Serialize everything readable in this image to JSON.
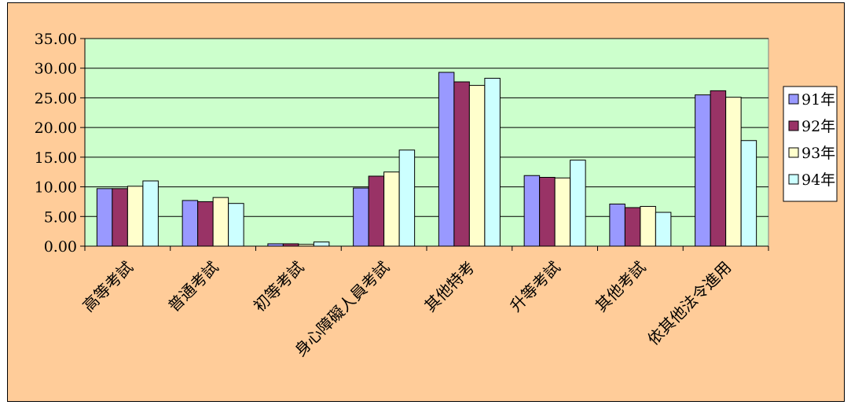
{
  "chart_data": {
    "type": "bar",
    "title": "",
    "xlabel": "",
    "ylabel": "",
    "categories": [
      "高等考試",
      "普通考試",
      "初等考試",
      "身心障礙人員考試",
      "其他特考",
      "升等考試",
      "其他考試",
      "依其他法令進用"
    ],
    "series": [
      {
        "name": "91年",
        "color": "#9999FF",
        "values": [
          9.7,
          7.7,
          0.4,
          9.8,
          29.3,
          11.9,
          7.1,
          25.5
        ]
      },
      {
        "name": "92年",
        "color": "#993366",
        "values": [
          9.7,
          7.5,
          0.4,
          11.8,
          27.7,
          11.6,
          6.5,
          26.2
        ]
      },
      {
        "name": "93年",
        "color": "#FFFFCC",
        "values": [
          10.1,
          8.2,
          0.3,
          12.5,
          27.1,
          11.5,
          6.7,
          25.1
        ]
      },
      {
        "name": "94年",
        "color": "#CCFFFF",
        "values": [
          11.0,
          7.2,
          0.7,
          16.2,
          28.3,
          14.5,
          5.7,
          17.8
        ]
      }
    ],
    "ylim": [
      0,
      35
    ],
    "yticks": [
      "0.00",
      "5.00",
      "10.00",
      "15.00",
      "20.00",
      "25.00",
      "30.00",
      "35.00"
    ],
    "grid": true,
    "legend_position": "right",
    "plot_background": "#CCFFCC",
    "chart_background": "#FFCC99"
  }
}
